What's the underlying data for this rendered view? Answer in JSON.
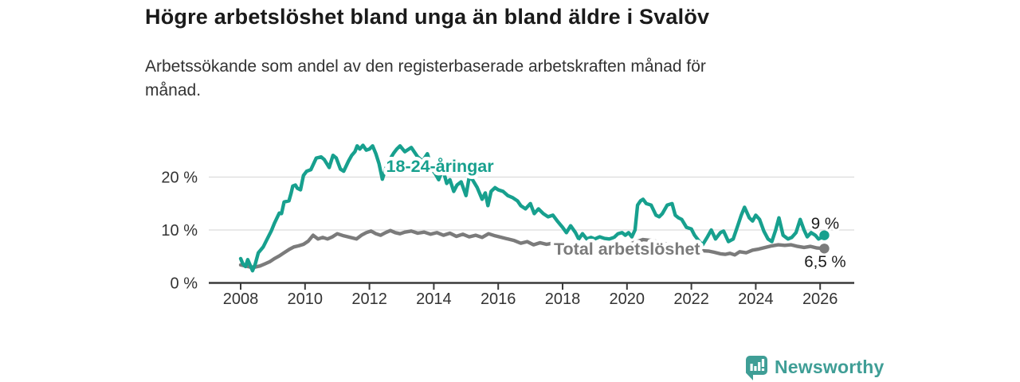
{
  "chart_data": {
    "type": "line",
    "title": "Högre arbetslöshet bland unga än bland äldre i Svalöv",
    "subtitle": "Arbetssökande som andel av den registerbaserade arbetskraften månad för månad.",
    "subtitle_lines": [
      "Arbetssökande som andel av den registerbaserade arbetskraften månad för",
      "månad."
    ],
    "xlabel": "",
    "ylabel": "",
    "xlim": [
      2007.9,
      2027.1
    ],
    "ylim": [
      0,
      27.5
    ],
    "grid": "horizontal",
    "x_ticks": [
      2008,
      2010,
      2012,
      2014,
      2016,
      2018,
      2020,
      2022,
      2024,
      2026
    ],
    "x_tick_labels": [
      "2008",
      "2010",
      "2012",
      "2014",
      "2016",
      "2018",
      "2020",
      "2022",
      "2024",
      "2026"
    ],
    "y_ticks": [
      0,
      10,
      20
    ],
    "y_tick_labels": [
      "0 %",
      "10 %",
      "20 %"
    ],
    "axis_color": "#3a3a3a",
    "grid_color": "#dcdcdc",
    "tick_text_color": "#333333",
    "end_label_color": "#1a1a1a",
    "series": [
      {
        "name": "Total arbetslöshet",
        "color": "#7b7b7b",
        "label_pos": {
          "x": 2020.0,
          "y": 6.4
        },
        "end_label": "6,5 %",
        "end_label_side": "below",
        "points": [
          [
            2008.0,
            3.4
          ],
          [
            2008.15,
            3.2
          ],
          [
            2008.3,
            3.0
          ],
          [
            2008.45,
            3.0
          ],
          [
            2008.6,
            3.2
          ],
          [
            2008.75,
            3.6
          ],
          [
            2008.9,
            4.0
          ],
          [
            2009.05,
            4.6
          ],
          [
            2009.2,
            5.1
          ],
          [
            2009.35,
            5.7
          ],
          [
            2009.5,
            6.3
          ],
          [
            2009.65,
            6.8
          ],
          [
            2009.8,
            7.0
          ],
          [
            2009.95,
            7.3
          ],
          [
            2010.1,
            7.9
          ],
          [
            2010.25,
            9.0
          ],
          [
            2010.4,
            8.3
          ],
          [
            2010.55,
            8.6
          ],
          [
            2010.7,
            8.3
          ],
          [
            2010.85,
            8.7
          ],
          [
            2011.0,
            9.3
          ],
          [
            2011.2,
            8.9
          ],
          [
            2011.4,
            8.6
          ],
          [
            2011.6,
            8.3
          ],
          [
            2011.75,
            9.0
          ],
          [
            2011.9,
            9.5
          ],
          [
            2012.05,
            9.8
          ],
          [
            2012.2,
            9.3
          ],
          [
            2012.35,
            9.0
          ],
          [
            2012.5,
            9.5
          ],
          [
            2012.65,
            9.9
          ],
          [
            2012.8,
            9.5
          ],
          [
            2012.95,
            9.3
          ],
          [
            2013.1,
            9.6
          ],
          [
            2013.3,
            9.8
          ],
          [
            2013.5,
            9.4
          ],
          [
            2013.7,
            9.6
          ],
          [
            2013.9,
            9.2
          ],
          [
            2014.1,
            9.5
          ],
          [
            2014.3,
            9.0
          ],
          [
            2014.5,
            9.4
          ],
          [
            2014.7,
            8.8
          ],
          [
            2014.9,
            9.2
          ],
          [
            2015.1,
            8.7
          ],
          [
            2015.3,
            9.0
          ],
          [
            2015.5,
            8.6
          ],
          [
            2015.7,
            9.3
          ],
          [
            2015.9,
            8.9
          ],
          [
            2016.1,
            8.6
          ],
          [
            2016.3,
            8.3
          ],
          [
            2016.5,
            8.0
          ],
          [
            2016.7,
            7.5
          ],
          [
            2016.9,
            7.8
          ],
          [
            2017.1,
            7.2
          ],
          [
            2017.3,
            7.6
          ],
          [
            2017.5,
            7.3
          ],
          [
            2017.7,
            7.5
          ],
          [
            2017.9,
            7.2
          ],
          [
            2018.1,
            6.8
          ],
          [
            2018.4,
            6.5
          ],
          [
            2018.7,
            6.3
          ],
          [
            2019.0,
            6.2
          ],
          [
            2019.4,
            6.4
          ],
          [
            2019.8,
            6.6
          ],
          [
            2020.2,
            7.6
          ],
          [
            2020.5,
            8.2
          ],
          [
            2020.8,
            8.0
          ],
          [
            2021.2,
            7.4
          ],
          [
            2021.6,
            6.8
          ],
          [
            2022.0,
            6.3
          ],
          [
            2022.3,
            6.1
          ],
          [
            2022.55,
            6.0
          ],
          [
            2022.7,
            5.8
          ],
          [
            2022.9,
            5.5
          ],
          [
            2023.05,
            5.4
          ],
          [
            2023.2,
            5.6
          ],
          [
            2023.35,
            5.3
          ],
          [
            2023.5,
            5.9
          ],
          [
            2023.7,
            5.7
          ],
          [
            2023.9,
            6.2
          ],
          [
            2024.1,
            6.4
          ],
          [
            2024.3,
            6.7
          ],
          [
            2024.5,
            7.0
          ],
          [
            2024.7,
            7.2
          ],
          [
            2024.9,
            7.1
          ],
          [
            2025.1,
            7.2
          ],
          [
            2025.3,
            6.9
          ],
          [
            2025.5,
            6.7
          ],
          [
            2025.7,
            6.9
          ],
          [
            2025.9,
            6.6
          ],
          [
            2026.13,
            6.5
          ]
        ]
      },
      {
        "name": "18-24-åringar",
        "color": "#17a08e",
        "label_pos": {
          "x": 2014.19,
          "y": 22.0
        },
        "end_label": "9 %",
        "end_label_side": "above",
        "points": [
          [
            2008.0,
            4.6
          ],
          [
            2008.07,
            3.6
          ],
          [
            2008.15,
            3.1
          ],
          [
            2008.22,
            4.4
          ],
          [
            2008.3,
            3.3
          ],
          [
            2008.37,
            2.3
          ],
          [
            2008.45,
            3.5
          ],
          [
            2008.55,
            5.7
          ],
          [
            2008.7,
            6.8
          ],
          [
            2008.8,
            8.0
          ],
          [
            2008.95,
            9.8
          ],
          [
            2009.05,
            11.3
          ],
          [
            2009.2,
            13.2
          ],
          [
            2009.27,
            13.1
          ],
          [
            2009.35,
            15.3
          ],
          [
            2009.5,
            15.5
          ],
          [
            2009.57,
            17.0
          ],
          [
            2009.62,
            18.3
          ],
          [
            2009.7,
            18.5
          ],
          [
            2009.76,
            17.9
          ],
          [
            2009.86,
            17.6
          ],
          [
            2009.95,
            20.3
          ],
          [
            2010.05,
            21.1
          ],
          [
            2010.18,
            21.4
          ],
          [
            2010.35,
            23.6
          ],
          [
            2010.5,
            23.8
          ],
          [
            2010.6,
            23.3
          ],
          [
            2010.75,
            21.8
          ],
          [
            2010.87,
            24.1
          ],
          [
            2010.97,
            23.6
          ],
          [
            2011.1,
            21.5
          ],
          [
            2011.2,
            21.1
          ],
          [
            2011.35,
            23.0
          ],
          [
            2011.45,
            24.1
          ],
          [
            2011.55,
            24.8
          ],
          [
            2011.62,
            25.9
          ],
          [
            2011.7,
            25.3
          ],
          [
            2011.8,
            26.0
          ],
          [
            2011.9,
            25.1
          ],
          [
            2012.0,
            25.3
          ],
          [
            2012.1,
            25.9
          ],
          [
            2012.2,
            24.4
          ],
          [
            2012.3,
            22.5
          ],
          [
            2012.4,
            19.6
          ],
          [
            2012.5,
            21.5
          ],
          [
            2012.6,
            23.0
          ],
          [
            2012.75,
            24.5
          ],
          [
            2012.85,
            25.3
          ],
          [
            2012.95,
            25.9
          ],
          [
            2013.1,
            24.8
          ],
          [
            2013.3,
            25.6
          ],
          [
            2013.5,
            23.8
          ],
          [
            2013.65,
            23.0
          ],
          [
            2013.8,
            24.4
          ],
          [
            2013.95,
            21.4
          ],
          [
            2014.05,
            20.6
          ],
          [
            2014.15,
            19.5
          ],
          [
            2014.28,
            21.5
          ],
          [
            2014.4,
            18.8
          ],
          [
            2014.5,
            19.5
          ],
          [
            2014.62,
            17.3
          ],
          [
            2014.72,
            18.5
          ],
          [
            2014.85,
            19.1
          ],
          [
            2015.0,
            16.5
          ],
          [
            2015.1,
            20.0
          ],
          [
            2015.2,
            19.5
          ],
          [
            2015.35,
            18.0
          ],
          [
            2015.5,
            15.8
          ],
          [
            2015.6,
            17.0
          ],
          [
            2015.68,
            14.6
          ],
          [
            2015.78,
            17.3
          ],
          [
            2015.9,
            18.0
          ],
          [
            2016.0,
            17.6
          ],
          [
            2016.15,
            17.3
          ],
          [
            2016.3,
            16.5
          ],
          [
            2016.45,
            16.1
          ],
          [
            2016.6,
            15.5
          ],
          [
            2016.7,
            14.6
          ],
          [
            2016.85,
            14.0
          ],
          [
            2017.0,
            15.0
          ],
          [
            2017.12,
            13.1
          ],
          [
            2017.25,
            14.0
          ],
          [
            2017.4,
            13.1
          ],
          [
            2017.55,
            12.5
          ],
          [
            2017.7,
            12.8
          ],
          [
            2017.85,
            11.6
          ],
          [
            2018.0,
            10.5
          ],
          [
            2018.12,
            9.5
          ],
          [
            2018.25,
            10.8
          ],
          [
            2018.4,
            9.5
          ],
          [
            2018.5,
            8.3
          ],
          [
            2018.62,
            9.3
          ],
          [
            2018.75,
            8.3
          ],
          [
            2018.88,
            8.6
          ],
          [
            2019.0,
            8.3
          ],
          [
            2019.15,
            8.7
          ],
          [
            2019.3,
            8.4
          ],
          [
            2019.45,
            8.3
          ],
          [
            2019.6,
            8.6
          ],
          [
            2019.72,
            9.3
          ],
          [
            2019.85,
            9.5
          ],
          [
            2019.95,
            9.0
          ],
          [
            2020.05,
            9.5
          ],
          [
            2020.15,
            8.7
          ],
          [
            2020.25,
            10.0
          ],
          [
            2020.33,
            14.7
          ],
          [
            2020.42,
            15.5
          ],
          [
            2020.5,
            15.8
          ],
          [
            2020.6,
            15.0
          ],
          [
            2020.75,
            14.7
          ],
          [
            2020.9,
            12.8
          ],
          [
            2021.0,
            12.5
          ],
          [
            2021.1,
            13.1
          ],
          [
            2021.25,
            14.7
          ],
          [
            2021.4,
            15.0
          ],
          [
            2021.5,
            12.8
          ],
          [
            2021.6,
            12.3
          ],
          [
            2021.7,
            12.0
          ],
          [
            2021.85,
            10.5
          ],
          [
            2022.0,
            10.2
          ],
          [
            2022.1,
            9.0
          ],
          [
            2022.25,
            7.8
          ],
          [
            2022.35,
            7.2
          ],
          [
            2022.5,
            8.7
          ],
          [
            2022.62,
            10.0
          ],
          [
            2022.75,
            8.3
          ],
          [
            2022.9,
            9.5
          ],
          [
            2023.0,
            9.8
          ],
          [
            2023.15,
            7.8
          ],
          [
            2023.3,
            8.3
          ],
          [
            2023.45,
            11.0
          ],
          [
            2023.55,
            12.8
          ],
          [
            2023.65,
            14.3
          ],
          [
            2023.8,
            12.3
          ],
          [
            2023.9,
            11.7
          ],
          [
            2024.0,
            12.8
          ],
          [
            2024.12,
            12.0
          ],
          [
            2024.25,
            9.8
          ],
          [
            2024.38,
            8.3
          ],
          [
            2024.5,
            7.8
          ],
          [
            2024.62,
            10.0
          ],
          [
            2024.72,
            12.3
          ],
          [
            2024.85,
            9.0
          ],
          [
            2025.0,
            8.3
          ],
          [
            2025.12,
            8.6
          ],
          [
            2025.25,
            9.5
          ],
          [
            2025.38,
            12.0
          ],
          [
            2025.5,
            10.0
          ],
          [
            2025.6,
            8.7
          ],
          [
            2025.72,
            9.5
          ],
          [
            2025.85,
            9.0
          ],
          [
            2025.95,
            8.3
          ],
          [
            2026.05,
            8.6
          ],
          [
            2026.13,
            9.0
          ]
        ]
      }
    ]
  },
  "footer": {
    "brand": "Newsworthy",
    "brand_color": "#3f9e96",
    "logo_icon": "bar-chart-speech-bubble-icon"
  }
}
